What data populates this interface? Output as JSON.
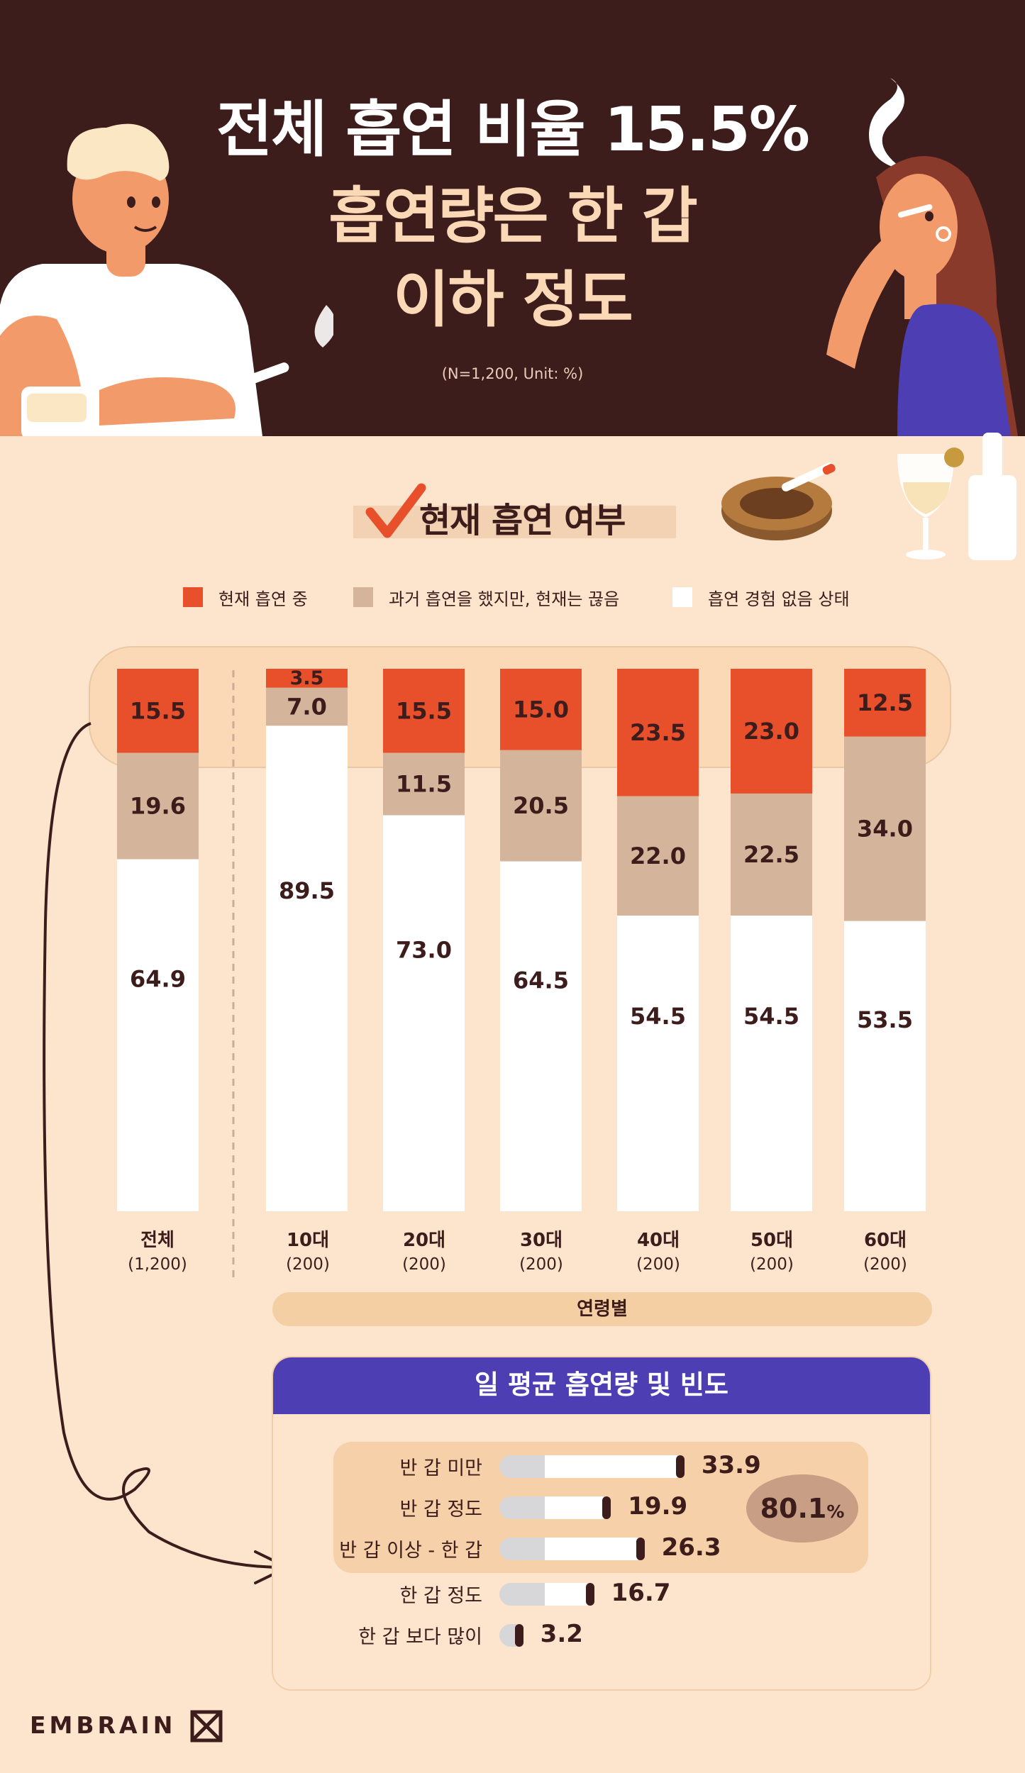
{
  "header": {
    "title_line1": "전체 흡연 비율 15.5%",
    "title_line2": "흡연량은 한 갑",
    "title_line3": "이하 정도",
    "sample_note": "(N=1,200, Unit: %)"
  },
  "section": {
    "label": "현재 흡연 여부"
  },
  "legend": [
    {
      "label": "현재 흡연 중",
      "color": "#e8502c"
    },
    {
      "label": "과거 흡연을 했지만, 현재는 끊음",
      "color": "#d4b59b"
    },
    {
      "label": "흡연 경험 없음 상태",
      "color": "#ffffff"
    }
  ],
  "chart_data": [
    {
      "type": "bar",
      "stacked": true,
      "categories": [
        "전체",
        "10대",
        "20대",
        "30대",
        "40대",
        "50대",
        "60대"
      ],
      "category_sublabels": [
        "(1,200)",
        "(200)",
        "(200)",
        "(200)",
        "(200)",
        "(200)",
        "(200)"
      ],
      "series": [
        {
          "name": "현재 흡연 중",
          "color": "#e8502c",
          "values": [
            15.5,
            3.5,
            15.5,
            15.0,
            23.5,
            23.0,
            12.5
          ]
        },
        {
          "name": "과거 흡연을 했지만, 현재는 끊음",
          "color": "#d4b59b",
          "values": [
            19.6,
            7.0,
            11.5,
            20.5,
            22.0,
            22.5,
            34.0
          ]
        },
        {
          "name": "흡연 경험 없음 상태",
          "color": "#ffffff",
          "values": [
            64.9,
            89.5,
            73.0,
            64.5,
            54.5,
            54.5,
            53.5
          ]
        }
      ],
      "value_labels": [
        [
          "15.5",
          "3.5",
          "15.5",
          "15.0",
          "23.5",
          "23.0",
          "12.5"
        ],
        [
          "19.6",
          "7.0",
          "11.5",
          "20.5",
          "22.0",
          "22.5",
          "34.0"
        ],
        [
          "64.9",
          "89.5",
          "73.0",
          "64.5",
          "54.5",
          "54.5",
          "53.5"
        ]
      ],
      "ylim": [
        0,
        100
      ],
      "group_label": "연령별",
      "grid": false
    },
    {
      "type": "bar",
      "orientation": "horizontal",
      "title": "일 평균 흡연량 및 빈도",
      "categories": [
        "반 갑 미만",
        "반 갑 정도",
        "반 갑 이상 - 한 갑",
        "한 갑 정도",
        "한 갑 보다 많이"
      ],
      "values": [
        33.9,
        19.9,
        26.3,
        16.7,
        3.2
      ],
      "value_labels": [
        "33.9",
        "19.9",
        "26.3",
        "16.7",
        "3.2"
      ],
      "highlight": {
        "value": "80.1",
        "unit": "%"
      }
    }
  ],
  "brand": {
    "logo_text": "EMBRAIN"
  }
}
